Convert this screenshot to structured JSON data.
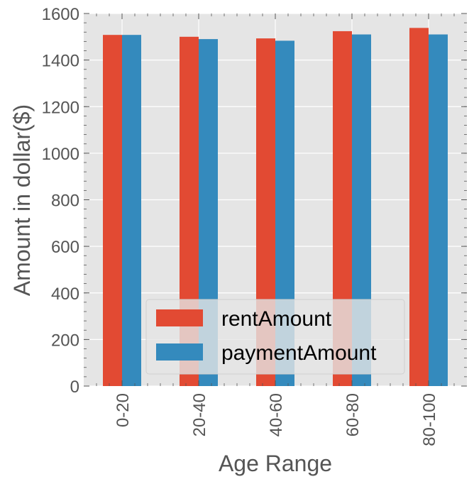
{
  "chart_data": {
    "type": "bar",
    "title": "",
    "xlabel": "Age Range",
    "ylabel": "Amount in dollar($)",
    "categories": [
      "0-20",
      "20-40",
      "40-60",
      "60-80",
      "80-100"
    ],
    "series": [
      {
        "name": "rentAmount",
        "color": "#E24A33",
        "values": [
          1508,
          1500,
          1493,
          1524,
          1538
        ]
      },
      {
        "name": "paymentAmount",
        "color": "#348ABD",
        "values": [
          1508,
          1490,
          1483,
          1510,
          1510
        ]
      }
    ],
    "ylim": [
      0,
      1600
    ],
    "yticks": [
      "0",
      "200",
      "400",
      "600",
      "800",
      "1000",
      "1200",
      "1400",
      "1600"
    ],
    "grid": true,
    "legend_position": "lower-center"
  }
}
